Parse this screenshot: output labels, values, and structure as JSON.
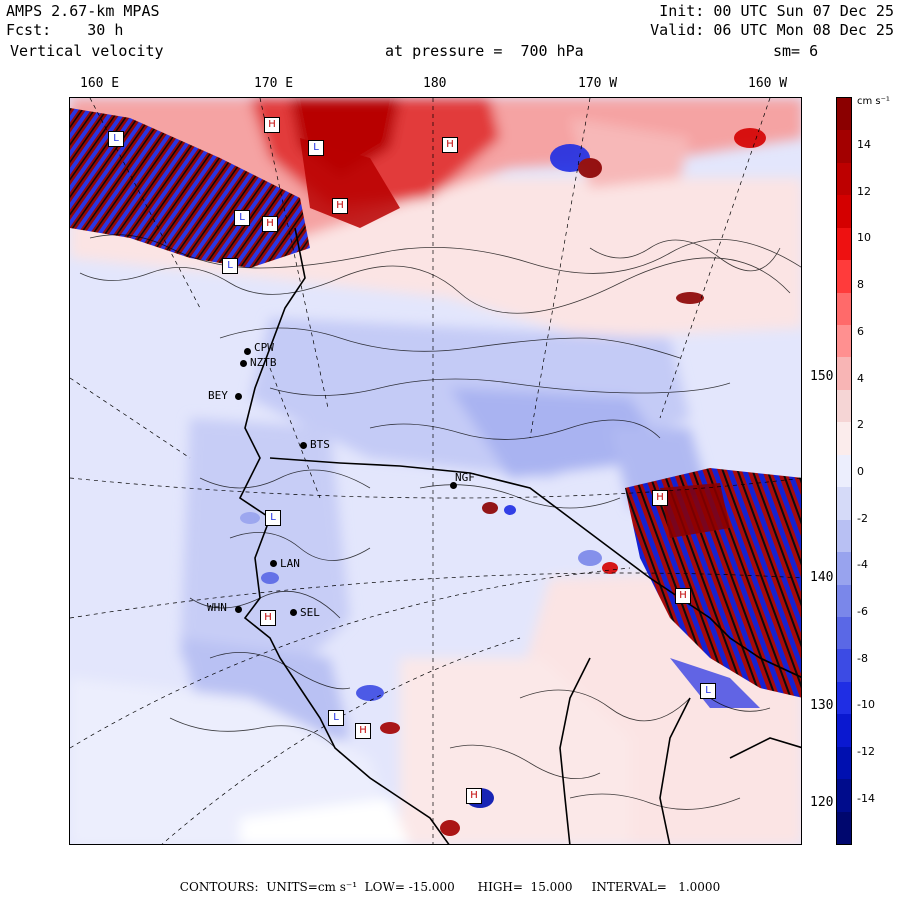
{
  "header": {
    "model": "AMPS 2.67-km MPAS",
    "forecast": "Fcst:    30 h",
    "field": "Vertical velocity",
    "pressure": "at pressure =  700 hPa",
    "init": "Init: 00 UTC Sun 07 Dec 25",
    "valid": "Valid: 06 UTC Mon 08 Dec 25",
    "smoothing": "sm= 6"
  },
  "map": {
    "lon_labels": [
      "160 E",
      "170 E",
      "180",
      "170 W",
      "160 W"
    ],
    "lat_labels": [
      "150 W",
      "140 W",
      "130 W",
      "120 W"
    ],
    "stations": [
      {
        "id": "CPW",
        "label": "CPW"
      },
      {
        "id": "NZTB",
        "label": "NZTB"
      },
      {
        "id": "BEY",
        "label": "BEY"
      },
      {
        "id": "BTS",
        "label": "BTS"
      },
      {
        "id": "LAN",
        "label": "LAN"
      },
      {
        "id": "WHN",
        "label": "WHN"
      },
      {
        "id": "SEL",
        "label": "SEL"
      },
      {
        "id": "NGF",
        "label": "NGF"
      }
    ],
    "extrema_labels": [
      "L",
      "H",
      "L",
      "L",
      "H",
      "H",
      "L",
      "H",
      "L",
      "H",
      "H",
      "L",
      "H",
      "L",
      "H",
      "H"
    ]
  },
  "colorbar": {
    "unit": "cm s⁻¹",
    "ticks": [
      "14",
      "12",
      "10",
      "8",
      "6",
      "4",
      "2",
      "0",
      "-2",
      "-4",
      "-6",
      "-8",
      "-10",
      "-12",
      "-14"
    ],
    "colors": [
      "#8b0000",
      "#a30000",
      "#bd0000",
      "#d40000",
      "#ee1111",
      "#ff3b3b",
      "#ff6a6a",
      "#ff9090",
      "#f8b5b5",
      "#f5d5d5",
      "#fbecec",
      "#eceefd",
      "#d5daf8",
      "#b8c0f3",
      "#98a3ee",
      "#7a87ea",
      "#5a68e6",
      "#3c4be4",
      "#1f2ee4",
      "#0a18d0",
      "#0010b0",
      "#000c8c",
      "#00076e"
    ]
  },
  "footer": {
    "contours": "CONTOURS:  UNITS=cm s⁻¹  LOW= -15.000      HIGH=  15.000     INTERVAL=   1.0000"
  }
}
